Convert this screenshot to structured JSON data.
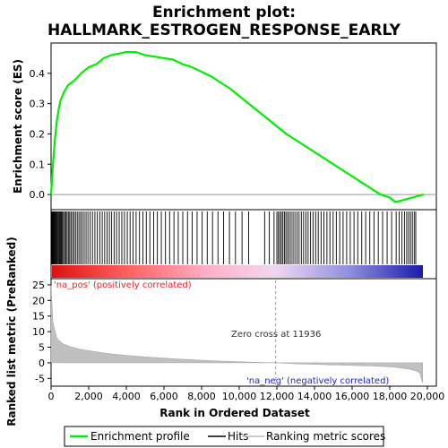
{
  "chart_data": {
    "type": "line",
    "title_line1": "Enrichment plot:",
    "title_line2": "HALLMARK_ESTROGEN_RESPONSE_EARLY",
    "es_ylabel": "Enrichment score (ES)",
    "metric_ylabel": "Ranked list metric (PreRanked)",
    "xlabel": "Rank in Ordered Dataset",
    "x_range": [
      0,
      20000
    ],
    "es_ylim": [
      -0.05,
      0.5
    ],
    "metric_ylim": [
      -7.5,
      27
    ],
    "x_ticks": [
      "0",
      "2,000",
      "4,000",
      "6,000",
      "8,000",
      "10,000",
      "12,000",
      "14,000",
      "16,000",
      "18,000",
      "20,000"
    ],
    "x_tick_values": [
      0,
      2000,
      4000,
      6000,
      8000,
      10000,
      12000,
      14000,
      16000,
      18000,
      20000
    ],
    "es_ticks": [
      "0.0",
      "0.1",
      "0.2",
      "0.3",
      "0.4"
    ],
    "es_tick_values": [
      0.0,
      0.1,
      0.2,
      0.3,
      0.4
    ],
    "metric_ticks": [
      "25",
      "20",
      "15",
      "10",
      "5",
      "0",
      "-5"
    ],
    "metric_tick_values": [
      25,
      20,
      15,
      10,
      5,
      0,
      -5
    ],
    "enrichment_profile": {
      "x": [
        0,
        100,
        200,
        300,
        400,
        500,
        700,
        900,
        1100,
        1300,
        1600,
        2000,
        2400,
        2800,
        3200,
        3600,
        4000,
        4500,
        5000,
        5500,
        6000,
        6500,
        7000,
        7500,
        8000,
        8500,
        9000,
        9500,
        10000,
        10500,
        11000,
        11500,
        12000,
        12500,
        13000,
        13500,
        14000,
        14500,
        15000,
        15500,
        16000,
        16500,
        17000,
        17500,
        18000,
        18300,
        18600,
        18900,
        19200,
        19500,
        19800
      ],
      "y": [
        0.0,
        0.1,
        0.18,
        0.24,
        0.28,
        0.31,
        0.34,
        0.36,
        0.37,
        0.38,
        0.4,
        0.42,
        0.43,
        0.45,
        0.46,
        0.465,
        0.47,
        0.47,
        0.46,
        0.455,
        0.45,
        0.445,
        0.43,
        0.42,
        0.405,
        0.39,
        0.37,
        0.35,
        0.325,
        0.3,
        0.275,
        0.25,
        0.225,
        0.2,
        0.18,
        0.16,
        0.14,
        0.12,
        0.1,
        0.08,
        0.06,
        0.04,
        0.02,
        0.0,
        -0.01,
        -0.025,
        -0.02,
        -0.015,
        -0.01,
        -0.005,
        0.0
      ]
    },
    "hits_ranks": [
      30,
      60,
      90,
      120,
      150,
      190,
      230,
      270,
      310,
      350,
      400,
      450,
      500,
      550,
      600,
      660,
      720,
      780,
      850,
      920,
      990,
      1060,
      1140,
      1220,
      1300,
      1390,
      1480,
      1570,
      1660,
      1760,
      1860,
      1960,
      2080,
      2200,
      2330,
      2460,
      2590,
      2720,
      2850,
      2980,
      3100,
      3220,
      3350,
      3480,
      3620,
      3760,
      3900,
      4050,
      4200,
      4360,
      4520,
      4700,
      4880,
      5060,
      5250,
      5450,
      5650,
      5860,
      6080,
      6300,
      6530,
      6760,
      7000,
      7250,
      7500,
      7760,
      8030,
      8300,
      8580,
      8870,
      9170,
      9480,
      9800,
      10150,
      10500,
      11350,
      11600,
      11850,
      12000,
      12080,
      12160,
      12240,
      12320,
      12400,
      12480,
      12570,
      12660,
      12760,
      12860,
      12960,
      13070,
      13180,
      13300,
      13420,
      13540,
      13660,
      13790,
      13920,
      14060,
      14200,
      14350,
      14500,
      14660,
      14820,
      14990,
      15160,
      15340,
      15520,
      15710,
      15900,
      16100,
      16300,
      16510,
      16720,
      16940,
      17160,
      17390,
      17620,
      17860,
      18100,
      18340,
      18500,
      18650,
      18780,
      18900,
      19000,
      19100,
      19200,
      19300,
      19380
    ],
    "metric_curve": {
      "x": [
        0,
        100,
        300,
        600,
        1000,
        1500,
        2000,
        3000,
        4000,
        5000,
        6000,
        7000,
        8000,
        9000,
        10000,
        11000,
        11936,
        13000,
        14000,
        15000,
        16000,
        17000,
        18000,
        18500,
        19000,
        19400,
        19600,
        19750
      ],
      "y": [
        25,
        13,
        8,
        6.2,
        5.2,
        4.4,
        3.9,
        3.0,
        2.4,
        1.9,
        1.5,
        1.15,
        0.85,
        0.55,
        0.35,
        0.15,
        0.0,
        -0.3,
        -0.5,
        -0.7,
        -0.85,
        -1.0,
        -1.3,
        -1.6,
        -2.0,
        -2.6,
        -3.4,
        -6.5
      ]
    },
    "pos_label": "'na_pos' (positively correlated)",
    "neg_label": "'na_neg' (negatively correlated)",
    "zero_cross_label": "Zero cross at 11936",
    "zero_cross": 11936,
    "legend": {
      "position": "bottom",
      "items": [
        {
          "name": "Enrichment profile",
          "color": "#00ee00"
        },
        {
          "name": "Hits",
          "color": "#000000"
        },
        {
          "name": "Ranking metric scores",
          "color": "#bbbbbb"
        }
      ]
    },
    "colors": {
      "profile": "#00ee00",
      "hits": "#000000",
      "metric": "#c0c0c0",
      "pos_text": "#ee2222",
      "neg_text": "#2222cc",
      "zero_text": "#333333"
    }
  }
}
